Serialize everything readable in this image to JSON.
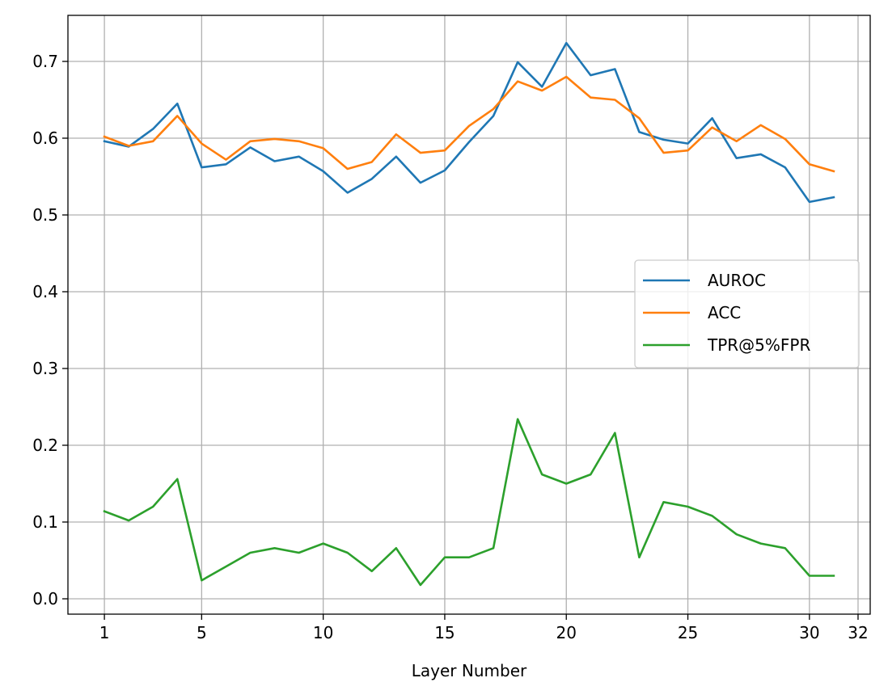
{
  "chart_data": {
    "type": "line",
    "xlabel": "Layer Number",
    "ylabel": "",
    "title": "",
    "x": [
      1,
      2,
      3,
      4,
      5,
      6,
      7,
      8,
      9,
      10,
      11,
      12,
      13,
      14,
      15,
      16,
      17,
      18,
      19,
      20,
      21,
      22,
      23,
      24,
      25,
      26,
      27,
      28,
      29,
      30,
      31
    ],
    "xticks": [
      1,
      5,
      10,
      15,
      20,
      25,
      30,
      32
    ],
    "xtick_labels": [
      "1",
      "5",
      "10",
      "15",
      "20",
      "25",
      "30",
      "32"
    ],
    "xlim": [
      -0.5,
      32.5
    ],
    "yticks": [
      0.0,
      0.1,
      0.2,
      0.3,
      0.4,
      0.5,
      0.6,
      0.7
    ],
    "ytick_labels": [
      "0.0",
      "0.1",
      "0.2",
      "0.3",
      "0.4",
      "0.5",
      "0.6",
      "0.7"
    ],
    "ylim": [
      -0.02,
      0.76
    ],
    "grid": true,
    "legend_position": "center-right",
    "series": [
      {
        "name": "AUROC",
        "color": "#1f77b4",
        "values": [
          0.596,
          0.589,
          0.612,
          0.645,
          0.562,
          0.566,
          0.588,
          0.57,
          0.576,
          0.557,
          0.529,
          0.547,
          0.576,
          0.542,
          0.558,
          0.595,
          0.629,
          0.699,
          0.667,
          0.724,
          0.682,
          0.69,
          0.608,
          0.598,
          0.593,
          0.626,
          0.574,
          0.579,
          0.562,
          0.517,
          0.523
        ]
      },
      {
        "name": "ACC",
        "color": "#ff7f0e",
        "values": [
          0.602,
          0.59,
          0.596,
          0.629,
          0.593,
          0.572,
          0.596,
          0.599,
          0.596,
          0.587,
          0.56,
          0.569,
          0.605,
          0.581,
          0.584,
          0.616,
          0.638,
          0.674,
          0.662,
          0.68,
          0.653,
          0.65,
          0.626,
          0.581,
          0.584,
          0.614,
          0.596,
          0.617,
          0.599,
          0.566,
          0.557
        ]
      },
      {
        "name": "TPR@5%FPR",
        "color": "#2ca02c",
        "values": [
          0.114,
          0.102,
          0.12,
          0.156,
          0.024,
          0.042,
          0.06,
          0.066,
          0.06,
          0.072,
          0.06,
          0.036,
          0.066,
          0.018,
          0.054,
          0.054,
          0.066,
          0.234,
          0.162,
          0.15,
          0.162,
          0.216,
          0.054,
          0.126,
          0.12,
          0.108,
          0.084,
          0.072,
          0.066,
          0.03,
          0.03
        ]
      }
    ]
  }
}
